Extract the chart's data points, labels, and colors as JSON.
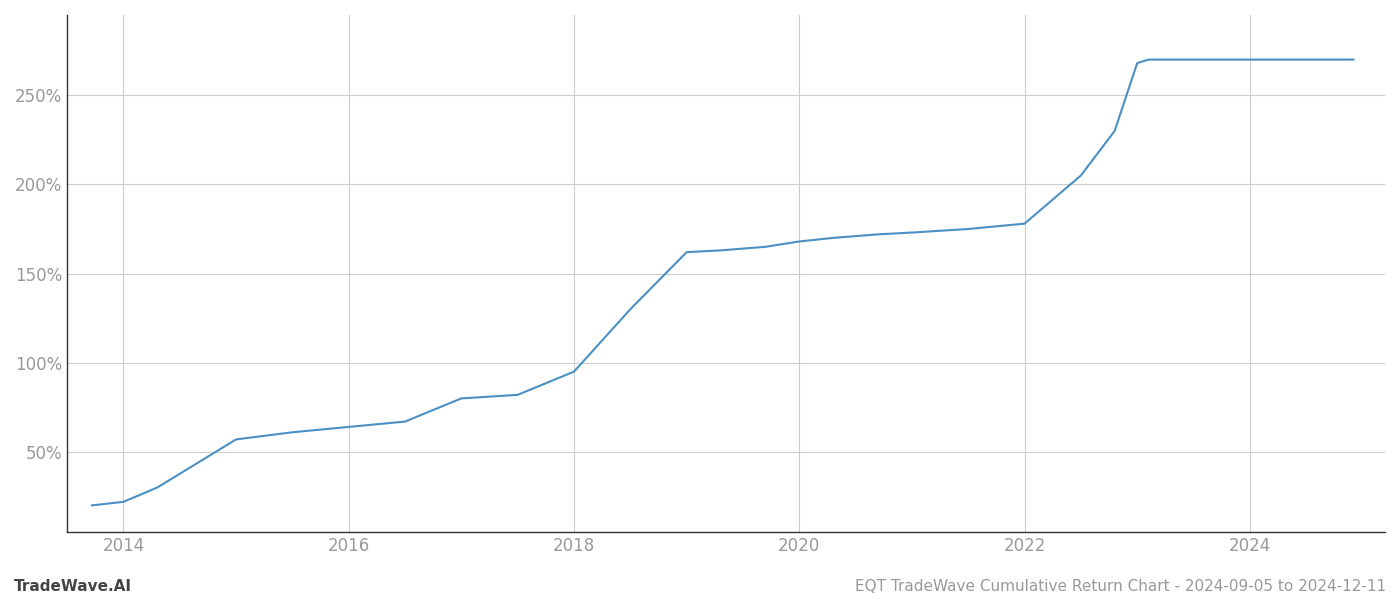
{
  "title": "EQT TradeWave Cumulative Return Chart - 2024-09-05 to 2024-12-11",
  "watermark": "TradeWave.AI",
  "line_color": "#4a90c4",
  "background_color": "#ffffff",
  "grid_color": "#cccccc",
  "x_years": [
    2013.72,
    2014.0,
    2014.3,
    2015.0,
    2015.5,
    2016.0,
    2016.5,
    2017.0,
    2017.5,
    2018.0,
    2018.5,
    2019.0,
    2019.3,
    2019.7,
    2020.0,
    2020.3,
    2020.7,
    2021.0,
    2021.5,
    2022.0,
    2022.5,
    2022.8,
    2023.0,
    2023.1,
    2023.5,
    2024.0,
    2024.5,
    2024.92
  ],
  "y_values": [
    20,
    22,
    30,
    57,
    61,
    64,
    67,
    80,
    82,
    95,
    130,
    162,
    163,
    165,
    168,
    170,
    172,
    173,
    175,
    178,
    205,
    230,
    268,
    270,
    270,
    270,
    270,
    270
  ],
  "xlim": [
    2013.5,
    2025.2
  ],
  "ylim": [
    5,
    295
  ],
  "yticks": [
    50,
    100,
    150,
    200,
    250
  ],
  "ytick_labels": [
    "50%",
    "100%",
    "150%",
    "200%",
    "250%"
  ],
  "xticks": [
    2014,
    2016,
    2018,
    2020,
    2022,
    2024
  ],
  "tick_color": "#999999",
  "left_spine_color": "#333333",
  "bottom_spine_color": "#333333",
  "title_fontsize": 11,
  "watermark_fontsize": 11,
  "tick_fontsize": 12
}
